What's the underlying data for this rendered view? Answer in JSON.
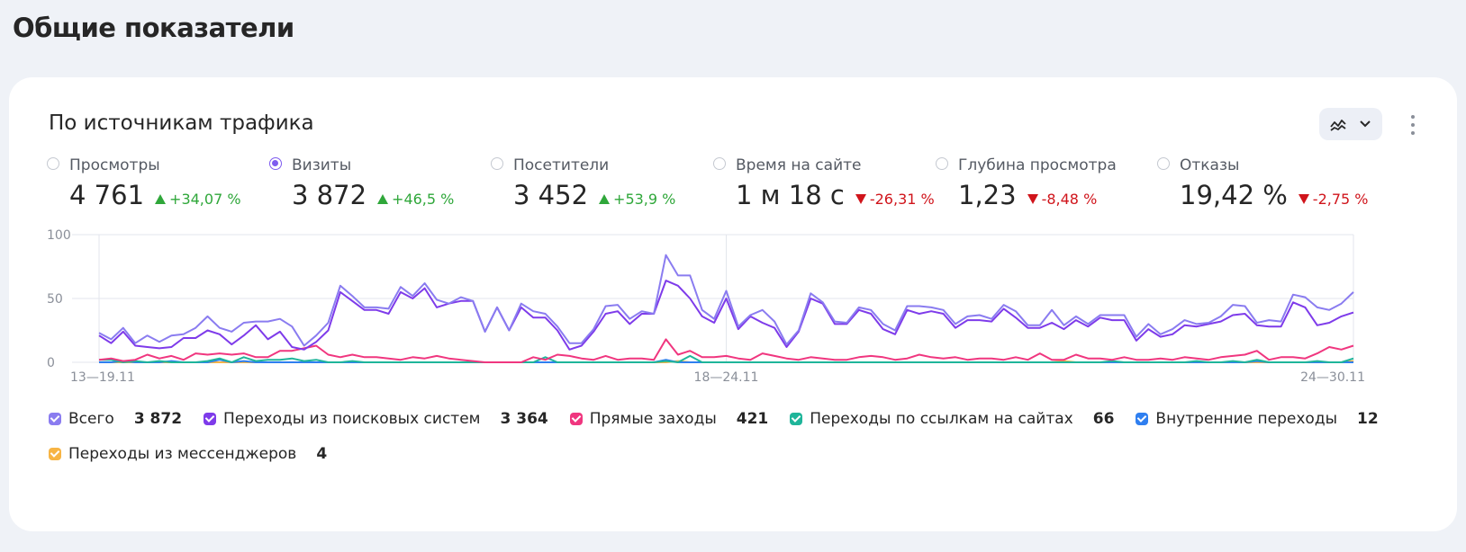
{
  "page": {
    "title": "Общие показатели"
  },
  "card": {
    "title": "По источникам трафика",
    "chart_type_icon": "line-chart-icon",
    "dropdown_icon": "chevron-down-icon",
    "more_icon": "more-vertical-icon"
  },
  "metrics": [
    {
      "label": "Просмотры",
      "value": "4 761",
      "delta": "+34,07 %",
      "trend": "up",
      "selected": false
    },
    {
      "label": "Визиты",
      "value": "3 872",
      "delta": "+46,5 %",
      "trend": "up",
      "selected": true
    },
    {
      "label": "Посетители",
      "value": "3 452",
      "delta": "+53,9 %",
      "trend": "up",
      "selected": false
    },
    {
      "label": "Время на сайте",
      "value": "1 м 18 с",
      "delta": "-26,31 %",
      "trend": "down",
      "selected": false
    },
    {
      "label": "Глубина просмотра",
      "value": "1,23",
      "delta": "-8,48 %",
      "trend": "down",
      "selected": false
    },
    {
      "label": "Отказы",
      "value": "19,42 %",
      "delta": "-2,75 %",
      "trend": "down",
      "selected": false
    }
  ],
  "legend": [
    {
      "name": "Всего",
      "value": "3 872",
      "color": "#8a7cf0"
    },
    {
      "name": "Переходы из поисковых систем",
      "value": "3 364",
      "color": "#7e3bea"
    },
    {
      "name": "Прямые заходы",
      "value": "421",
      "color": "#f0367f"
    },
    {
      "name": "Переходы по ссылкам на сайтах",
      "value": "66",
      "color": "#1fb59a"
    },
    {
      "name": "Внутренние переходы",
      "value": "12",
      "color": "#2f7ff0"
    },
    {
      "name": "Переходы из мессенджеров",
      "value": "4",
      "color": "#f7b444"
    }
  ],
  "chart_data": {
    "type": "line",
    "ylim": [
      0,
      100
    ],
    "yticks": [
      "0",
      "50",
      "100"
    ],
    "xtick_labels": [
      "13—19.11",
      "18—24.11",
      "24—30.11"
    ],
    "grid": true,
    "series": [
      {
        "name": "Всего",
        "color": "#8a7cf0",
        "values": [
          23,
          18,
          27,
          15,
          21,
          16,
          21,
          22,
          27,
          36,
          27,
          24,
          31,
          32,
          32,
          34,
          28,
          13,
          21,
          31,
          60,
          52,
          43,
          43,
          42,
          59,
          52,
          62,
          49,
          46,
          51,
          48,
          24,
          43,
          25,
          46,
          40,
          38,
          28,
          15,
          15,
          26,
          44,
          45,
          34,
          40,
          38,
          84,
          68,
          68,
          41,
          34,
          56,
          28,
          37,
          41,
          32,
          14,
          25,
          54,
          47,
          32,
          31,
          43,
          41,
          30,
          25,
          44,
          44,
          43,
          41,
          30,
          36,
          37,
          34,
          45,
          40,
          29,
          29,
          41,
          29,
          36,
          30,
          37,
          37,
          37,
          20,
          30,
          22,
          26,
          33,
          30,
          31,
          36,
          45,
          44,
          31,
          33,
          32,
          53,
          51,
          43,
          41,
          46,
          55
        ]
      },
      {
        "name": "Переходы из поисковых систем",
        "color": "#7e3bea",
        "values": [
          21,
          15,
          24,
          13,
          12,
          11,
          12,
          19,
          19,
          25,
          22,
          14,
          21,
          29,
          18,
          24,
          12,
          10,
          16,
          25,
          55,
          48,
          41,
          41,
          38,
          55,
          50,
          58,
          43,
          46,
          48,
          48,
          24,
          43,
          25,
          43,
          35,
          35,
          25,
          10,
          13,
          24,
          38,
          40,
          30,
          38,
          38,
          64,
          60,
          50,
          36,
          31,
          50,
          26,
          36,
          31,
          27,
          12,
          24,
          50,
          46,
          30,
          30,
          41,
          38,
          26,
          22,
          41,
          38,
          40,
          38,
          27,
          33,
          33,
          32,
          42,
          35,
          27,
          27,
          31,
          26,
          33,
          28,
          35,
          33,
          33,
          17,
          26,
          20,
          22,
          29,
          28,
          30,
          32,
          37,
          38,
          29,
          28,
          28,
          47,
          43,
          29,
          31,
          36,
          39
        ]
      },
      {
        "name": "Прямые заходы",
        "color": "#f0367f",
        "values": [
          2,
          3,
          1,
          2,
          6,
          3,
          5,
          2,
          7,
          6,
          7,
          6,
          7,
          4,
          4,
          9,
          9,
          11,
          13,
          6,
          4,
          6,
          4,
          4,
          3,
          2,
          4,
          3,
          5,
          3,
          2,
          1,
          0,
          0,
          0,
          0,
          4,
          2,
          6,
          5,
          3,
          2,
          5,
          2,
          3,
          3,
          2,
          18,
          6,
          9,
          4,
          4,
          5,
          3,
          2,
          7,
          5,
          3,
          2,
          4,
          3,
          2,
          2,
          4,
          5,
          4,
          2,
          3,
          6,
          4,
          3,
          4,
          2,
          3,
          3,
          2,
          4,
          2,
          7,
          2,
          2,
          6,
          3,
          3,
          2,
          4,
          2,
          2,
          3,
          2,
          4,
          3,
          2,
          4,
          5,
          6,
          9,
          2,
          4,
          4,
          3,
          7,
          12,
          10,
          13
        ]
      },
      {
        "name": "Переходы по ссылкам на сайтах",
        "color": "#1fb59a",
        "values": [
          2,
          2,
          0,
          1,
          0,
          1,
          0,
          0,
          0,
          1,
          3,
          0,
          4,
          1,
          2,
          2,
          3,
          1,
          2,
          0,
          0,
          1,
          0,
          0,
          0,
          0,
          0,
          0,
          0,
          0,
          0,
          0,
          0,
          0,
          0,
          0,
          0,
          4,
          0,
          0,
          0,
          0,
          0,
          0,
          0,
          0,
          0,
          1,
          0,
          5,
          0,
          0,
          0,
          0,
          0,
          0,
          0,
          0,
          0,
          0,
          0,
          0,
          0,
          0,
          0,
          0,
          0,
          0,
          0,
          0,
          0,
          0,
          0,
          0,
          0,
          0,
          0,
          0,
          0,
          0,
          0,
          0,
          0,
          0,
          1,
          0,
          0,
          0,
          0,
          0,
          0,
          1,
          0,
          0,
          1,
          0,
          2,
          0,
          0,
          0,
          0,
          1,
          0,
          0,
          3
        ]
      },
      {
        "name": "Внутренние переходы",
        "color": "#2f7ff0",
        "values": [
          0,
          0,
          1,
          0,
          0,
          0,
          1,
          0,
          0,
          0,
          2,
          0,
          1,
          0,
          0,
          0,
          0,
          0,
          0,
          0,
          0,
          0,
          0,
          0,
          0,
          0,
          0,
          0,
          0,
          0,
          0,
          0,
          0,
          0,
          0,
          0,
          0,
          0,
          0,
          0,
          0,
          0,
          0,
          0,
          0,
          0,
          0,
          2,
          0,
          0,
          0,
          0,
          0,
          0,
          0,
          0,
          0,
          0,
          0,
          0,
          0,
          0,
          0,
          0,
          0,
          0,
          0,
          0,
          0,
          0,
          0,
          0,
          0,
          0,
          0,
          0,
          0,
          0,
          0,
          0,
          0,
          0,
          0,
          0,
          0,
          0,
          0,
          0,
          0,
          0,
          0,
          0,
          0,
          0,
          0,
          0,
          1,
          0,
          0,
          0,
          0,
          0,
          0,
          0,
          0
        ]
      },
      {
        "name": "Переходы из мессенджеров",
        "color": "#f7b444",
        "values": [
          0,
          0,
          0,
          0,
          0,
          0,
          0,
          0,
          0,
          0,
          0,
          0,
          0,
          0,
          0,
          0,
          0,
          0,
          0,
          0,
          0,
          0,
          0,
          0,
          0,
          0,
          0,
          0,
          0,
          0,
          0,
          0,
          0,
          0,
          0,
          0,
          0,
          0,
          0,
          0,
          0,
          0,
          0,
          0,
          0,
          0,
          0,
          0,
          1,
          0,
          0,
          0,
          0,
          0,
          0,
          0,
          0,
          0,
          0,
          0,
          0,
          0,
          0,
          0,
          0,
          0,
          0,
          0,
          0,
          0,
          0,
          0,
          0,
          0,
          0,
          0,
          0,
          0,
          0,
          0,
          1,
          0,
          0,
          0,
          0,
          0,
          0,
          0,
          0,
          0,
          0,
          0,
          0,
          0,
          0,
          0,
          0,
          0,
          0,
          0,
          0,
          0,
          0,
          0,
          1
        ]
      }
    ]
  }
}
